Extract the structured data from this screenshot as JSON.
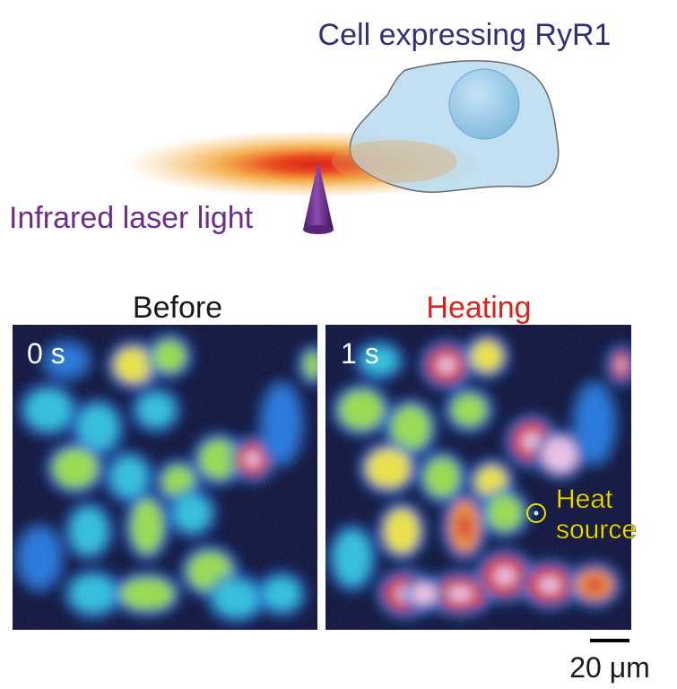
{
  "schematic": {
    "cell_label": "Cell expressing RyR1",
    "laser_label": "Infrared laser light",
    "colors": {
      "cell_label": "#2e3272",
      "laser_label": "#6d2c8c",
      "cell_fill": "#b7dbf0",
      "cell_stroke": "#6b6b6b",
      "nucleus": "#8cc3e4",
      "beam_core": "#d8231a",
      "beam_glow": "#f2a330",
      "cone": "#6a2d88"
    }
  },
  "panels": {
    "before": {
      "title": "Before",
      "time": "0 s",
      "title_color": "#1a1a1a"
    },
    "heating": {
      "title": "Heating",
      "time": "1 s",
      "title_color": "#e0201b",
      "annotation_line1": "Heat",
      "annotation_line2": "source",
      "annotation_color": "#f4e100"
    },
    "colormap": [
      "#06062a",
      "#0b2a8f",
      "#1a72d8",
      "#2bc0d8",
      "#9adf3c",
      "#f4e634",
      "#f58a1e",
      "#e02a22",
      "#f5c2e0"
    ]
  },
  "scale_bar": {
    "label": "20 μm"
  }
}
